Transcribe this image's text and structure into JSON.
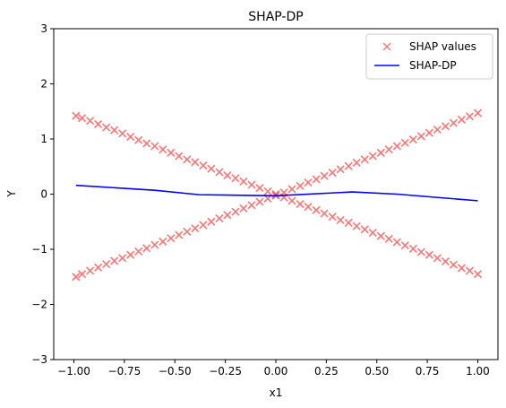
{
  "chart_data": {
    "type": "scatter",
    "title": "SHAP-DP",
    "xlabel": "x1",
    "ylabel": "Y",
    "xlim": [
      -1.1,
      1.1
    ],
    "ylim": [
      -3,
      3
    ],
    "xticks": [
      "−1.00",
      "−0.75",
      "−0.50",
      "−0.25",
      "0.00",
      "0.25",
      "0.50",
      "0.75",
      "1.00"
    ],
    "xtick_values": [
      -1.0,
      -0.75,
      -0.5,
      -0.25,
      0.0,
      0.25,
      0.5,
      0.75,
      1.0
    ],
    "yticks": [
      "−3",
      "−2",
      "−1",
      "0",
      "1",
      "2",
      "3"
    ],
    "ytick_values": [
      -3,
      -2,
      -1,
      0,
      1,
      2,
      3
    ],
    "grid": false,
    "legend_position": "top-right",
    "series": [
      {
        "name": "SHAP values",
        "kind": "scatter",
        "marker": "x",
        "color": "#ff0000",
        "x": [
          -0.99,
          -0.96,
          -0.92,
          -0.88,
          -0.84,
          -0.8,
          -0.76,
          -0.72,
          -0.68,
          -0.64,
          -0.6,
          -0.56,
          -0.52,
          -0.48,
          -0.44,
          -0.4,
          -0.36,
          -0.32,
          -0.28,
          -0.24,
          -0.2,
          -0.16,
          -0.12,
          -0.08,
          -0.04,
          0.0,
          0.04,
          0.08,
          0.12,
          0.16,
          0.2,
          0.24,
          0.28,
          0.32,
          0.36,
          0.4,
          0.44,
          0.48,
          0.52,
          0.56,
          0.6,
          0.64,
          0.68,
          0.72,
          0.76,
          0.8,
          0.84,
          0.88,
          0.92,
          0.96,
          1.0,
          -0.99,
          -0.96,
          -0.92,
          -0.88,
          -0.84,
          -0.8,
          -0.76,
          -0.72,
          -0.68,
          -0.64,
          -0.6,
          -0.56,
          -0.52,
          -0.48,
          -0.44,
          -0.4,
          -0.36,
          -0.32,
          -0.28,
          -0.24,
          -0.2,
          -0.16,
          -0.12,
          -0.08,
          -0.04,
          0.0,
          0.04,
          0.08,
          0.12,
          0.16,
          0.2,
          0.24,
          0.28,
          0.32,
          0.36,
          0.4,
          0.44,
          0.48,
          0.52,
          0.56,
          0.6,
          0.64,
          0.68,
          0.72,
          0.76,
          0.8,
          0.84,
          0.88,
          0.92,
          0.96,
          1.0
        ],
        "y": [
          1.42,
          1.38,
          1.33,
          1.27,
          1.21,
          1.16,
          1.1,
          1.04,
          0.98,
          0.92,
          0.87,
          0.81,
          0.75,
          0.69,
          0.63,
          0.58,
          0.52,
          0.46,
          0.4,
          0.34,
          0.29,
          0.23,
          0.17,
          0.11,
          0.05,
          0.0,
          -0.06,
          -0.12,
          -0.18,
          -0.23,
          -0.29,
          -0.35,
          -0.41,
          -0.47,
          -0.52,
          -0.58,
          -0.64,
          -0.7,
          -0.76,
          -0.81,
          -0.87,
          -0.93,
          -0.99,
          -1.05,
          -1.1,
          -1.16,
          -1.22,
          -1.28,
          -1.34,
          -1.39,
          -1.45,
          -1.5,
          -1.45,
          -1.39,
          -1.33,
          -1.27,
          -1.21,
          -1.16,
          -1.1,
          -1.04,
          -0.98,
          -0.92,
          -0.86,
          -0.8,
          -0.74,
          -0.68,
          -0.62,
          -0.56,
          -0.5,
          -0.44,
          -0.38,
          -0.32,
          -0.26,
          -0.2,
          -0.14,
          -0.08,
          -0.03,
          0.03,
          0.09,
          0.15,
          0.21,
          0.27,
          0.33,
          0.39,
          0.45,
          0.51,
          0.57,
          0.63,
          0.69,
          0.75,
          0.81,
          0.87,
          0.93,
          0.99,
          1.05,
          1.11,
          1.17,
          1.23,
          1.29,
          1.35,
          1.41,
          1.47
        ]
      },
      {
        "name": "SHAP-DP",
        "kind": "line",
        "color": "#0000ff",
        "x": [
          -0.99,
          -0.6,
          -0.38,
          0.0,
          0.38,
          0.6,
          1.0
        ],
        "y": [
          0.16,
          0.07,
          -0.01,
          -0.03,
          0.04,
          0.0,
          -0.12
        ]
      }
    ]
  }
}
